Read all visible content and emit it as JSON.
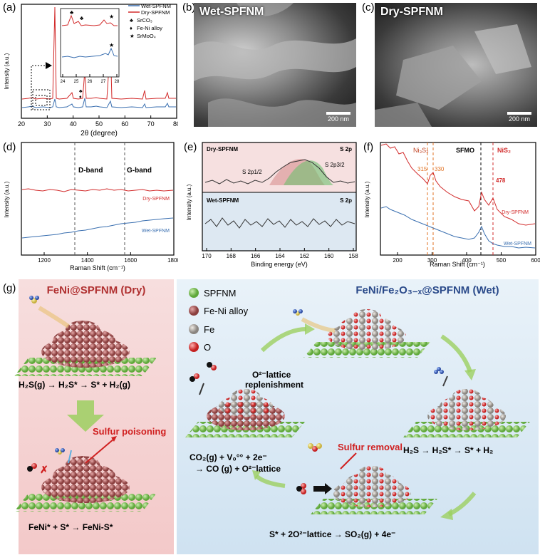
{
  "panels": {
    "a": {
      "label": "(a)",
      "ylabel": "Intensity (a.u.)",
      "xlabel": "2θ (degree)",
      "xticks": [
        "20",
        "30",
        "40",
        "50",
        "60",
        "70",
        "80"
      ],
      "legend": [
        {
          "name": "Wet-SPFNM",
          "color": "#3a6fb0"
        },
        {
          "name": "Dry-SPFNM",
          "color": "#d22b2b"
        }
      ],
      "inset_ticks": [
        "24",
        "25",
        "26",
        "27",
        "28"
      ],
      "phases": [
        {
          "sym": "♣",
          "name": "SrCO₃"
        },
        {
          "sym": "♦",
          "name": "Fe-Ni alloy"
        },
        {
          "sym": "★",
          "name": "SrMoO₄"
        }
      ]
    },
    "b": {
      "label": "(b)",
      "title": "Wet-SPFNM",
      "scale": "200 nm"
    },
    "c": {
      "label": "(c)",
      "title": "Dry-SPFNM",
      "scale": "200 nm"
    },
    "d": {
      "label": "(d)",
      "ylabel": "Intensity (a.u.)",
      "xlabel": "Raman Shift (cm⁻¹)",
      "xticks": [
        "1200",
        "1400",
        "1600",
        "1800"
      ],
      "band1": "D-band",
      "band2": "G-band",
      "dry": "Dry-SPFNM",
      "wet": "Wet-SPFNM"
    },
    "e": {
      "label": "(e)",
      "ylabel": "Intensity (a.u.)",
      "xlabel": "Binding energy (eV)",
      "xticks": [
        "170",
        "168",
        "166",
        "164",
        "162",
        "160",
        "158"
      ],
      "top_name": "Dry-SPFNM",
      "top_region": "S 2p",
      "bot_name": "Wet-SPFNM",
      "bot_region": "S 2p",
      "peak1": "S 2p1/2",
      "peak2": "S 2p3/2"
    },
    "f": {
      "label": "(f)",
      "ylabel": "Intensity (a.u.)",
      "xlabel": "Raman Shift (cm⁻¹)",
      "xticks": [
        "200",
        "300",
        "400",
        "500",
        "600"
      ],
      "ni3s2": "Ni₃S₂",
      "sfmo": "SFMO",
      "nis2": "NiS₂",
      "p315": "315",
      "p330": "330",
      "p478": "478",
      "dry": "Dry-SPFNM",
      "wet": "Wet-SPFNM"
    },
    "g": {
      "label": "(g)",
      "dry_title": "FeNi@SPFNM (Dry)",
      "wet_title": "FeNi/Fe₂O₃₋ₓ@SPFNM (Wet)",
      "legend": [
        {
          "name": "SPFNM",
          "color": "#7ec850"
        },
        {
          "name": "Fe-Ni alloy",
          "color": "#b05a5a"
        },
        {
          "name": "Fe",
          "color": "#b8b0a8"
        },
        {
          "name": "O",
          "color": "#e04040"
        }
      ],
      "eq_dry1": "H₂S(g) → H₂S* → S* + H₂(g)",
      "sulfur_poisoning": "Sulfur poisoning",
      "eq_dry2": "FeNi* + S* → FeNi-S*",
      "replenish1": "O²⁻lattice",
      "replenish2": "replenishment",
      "eq_co2_1": "CO₂(g) + V₀°° + 2e⁻",
      "eq_co2_2": "→ CO (g) + O²⁻lattice",
      "sulfur_removal": "Sulfur removal",
      "eq_h2s": "H₂S → H₂S* → S* + H₂",
      "eq_so2": "S* + 2O²⁻lattice → SO₂(g) + 4e⁻"
    }
  },
  "colors": {
    "wet": "#3a6fb0",
    "dry": "#d22b2b",
    "darkred": "#b03030",
    "navy": "#2a4a8a"
  }
}
